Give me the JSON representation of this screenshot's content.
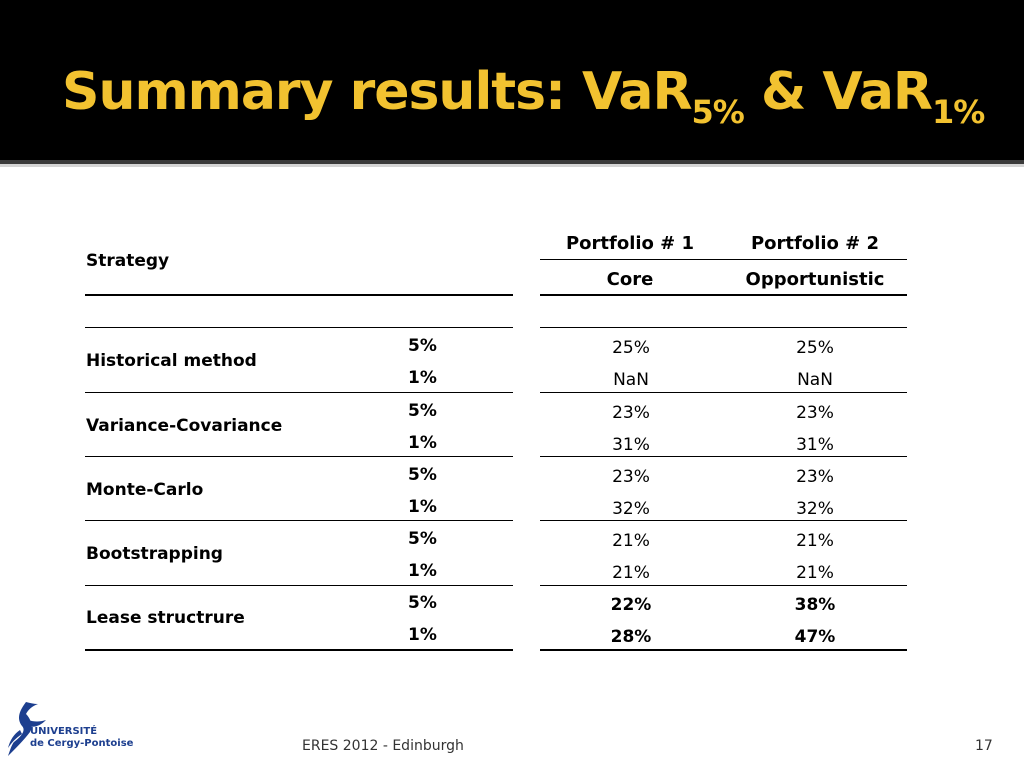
{
  "slide": {
    "title_main": "Summary results: VaR",
    "title_sub1": "5%",
    "title_amp": " & VaR",
    "title_sub2": "1%"
  },
  "table": {
    "strategy_header": "Strategy",
    "portfolio1_header": "Portfolio # 1",
    "portfolio2_header": "Portfolio # 2",
    "portfolio1_type": "Core",
    "portfolio2_type": "Opportunistic",
    "rows": [
      {
        "method": "Historical method",
        "levels": [
          "5%",
          "1%"
        ],
        "p1": [
          "25%",
          "NaN"
        ],
        "p2": [
          "25%",
          "NaN"
        ]
      },
      {
        "method": "Variance-Covariance",
        "levels": [
          "5%",
          "1%"
        ],
        "p1": [
          "23%",
          "31%"
        ],
        "p2": [
          "23%",
          "31%"
        ]
      },
      {
        "method": "Monte-Carlo",
        "levels": [
          "5%",
          "1%"
        ],
        "p1": [
          "23%",
          "32%"
        ],
        "p2": [
          "23%",
          "32%"
        ]
      },
      {
        "method": "Bootstrapping",
        "levels": [
          "5%",
          "1%"
        ],
        "p1": [
          "21%",
          "21%"
        ],
        "p2": [
          "21%",
          "21%"
        ]
      },
      {
        "method": "Lease structrure",
        "levels": [
          "5%",
          "1%"
        ],
        "p1": [
          "22%",
          "28%"
        ],
        "p2": [
          "38%",
          "47%"
        ]
      }
    ]
  },
  "footer": {
    "conference": "ERES 2012 - Edinburgh",
    "page_number": "17",
    "logo_line1": "UNIVERSITÉ",
    "logo_line2": "de Cergy-Pontoise"
  },
  "colors": {
    "title_text": "#f2c230",
    "title_background": "#000000",
    "logo_blue": "#1d3f8f"
  }
}
